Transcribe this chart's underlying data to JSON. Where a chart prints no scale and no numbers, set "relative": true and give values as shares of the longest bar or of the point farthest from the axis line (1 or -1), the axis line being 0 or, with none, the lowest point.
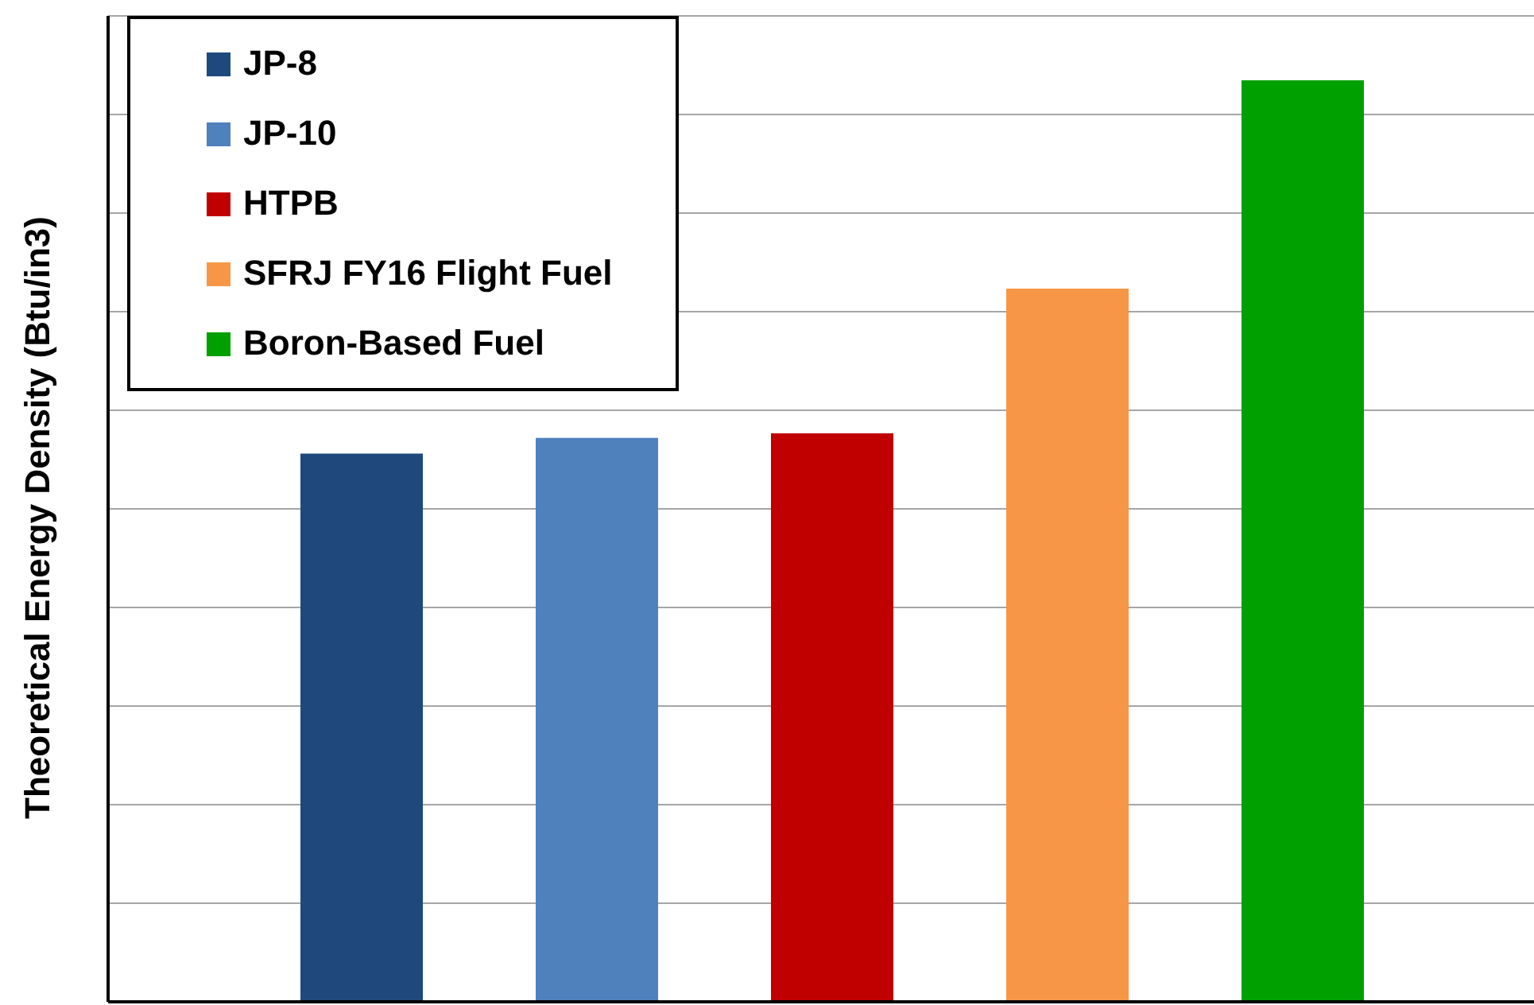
{
  "chart_data": {
    "type": "bar",
    "relative": true,
    "stacked": true,
    "ylabel": "Theoretical Energy Density (Btu/in3)",
    "categories": [
      null,
      null,
      null,
      null,
      null
    ],
    "series": [
      {
        "name": "JP-8",
        "color": "#1f497d",
        "values": [
          0.595,
          null,
          null,
          null,
          null
        ]
      },
      {
        "name": "JP-10",
        "color": "#4f81bd",
        "values": [
          null,
          0.612,
          null,
          null,
          null
        ]
      },
      {
        "name": "HTPB",
        "color": "#c00000",
        "values": [
          null,
          null,
          0.617,
          null,
          null
        ]
      },
      {
        "name": "SFRJ FY16 Flight Fuel",
        "color": "#f79646",
        "values": [
          null,
          null,
          null,
          0.774,
          null
        ]
      },
      {
        "name": "Boron-Based Fuel",
        "color": "#00a000",
        "values": [
          null,
          null,
          null,
          null,
          1
        ]
      }
    ],
    "grid": "y",
    "legend": "top left"
  }
}
